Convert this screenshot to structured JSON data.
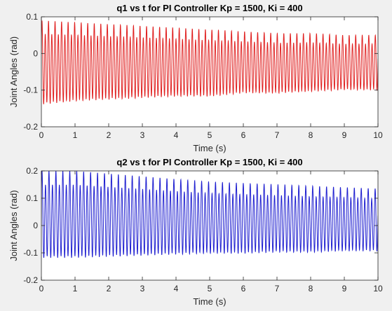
{
  "chart_data": [
    {
      "type": "line",
      "title": "q1 vs t for PI Controller Kp = 1500, Ki = 400",
      "xlabel": "Time (s)",
      "ylabel": "Joint Angles (rad)",
      "xlim": [
        0,
        10
      ],
      "ylim": [
        -0.2,
        0.1
      ],
      "xticks": [
        "0",
        "1",
        "2",
        "3",
        "4",
        "5",
        "6",
        "7",
        "8",
        "9",
        "10"
      ],
      "yticks": [
        "-0.2",
        "-0.1",
        "0",
        "0.1"
      ],
      "grid": false,
      "series": [
        {
          "color": "#e02020",
          "description_of_signal": "oscillation about -0.02 rad, ~10 cycles per second",
          "x": [
            0,
            1,
            2,
            3,
            4,
            5,
            6,
            7,
            8,
            9,
            10
          ],
          "upper_envelope": [
            0.09,
            0.085,
            0.08,
            0.075,
            0.07,
            0.065,
            0.06,
            0.055,
            0.055,
            0.05,
            0.05
          ],
          "lower_envelope": [
            -0.155,
            -0.145,
            -0.14,
            -0.135,
            -0.13,
            -0.13,
            -0.12,
            -0.12,
            -0.115,
            -0.11,
            -0.11
          ]
        }
      ]
    },
    {
      "type": "line",
      "title": "q2 vs t for PI Controller Kp = 1500, Ki = 400",
      "xlabel": "Time (s)",
      "ylabel": "Joint Angles (rad)",
      "xlim": [
        0,
        10
      ],
      "ylim": [
        -0.2,
        0.2
      ],
      "xticks": [
        "0",
        "1",
        "2",
        "3",
        "4",
        "5",
        "6",
        "7",
        "8",
        "9",
        "10"
      ],
      "yticks": [
        "-0.2",
        "-0.1",
        "0",
        "0.1",
        "0.2"
      ],
      "grid": false,
      "series": [
        {
          "color": "#1f1fd0",
          "x": [
            0,
            1,
            2,
            3,
            4,
            5,
            6,
            7,
            8,
            9,
            10
          ],
          "upper_envelope": [
            0.2,
            0.2,
            0.19,
            0.18,
            0.17,
            0.16,
            0.155,
            0.15,
            0.145,
            0.14,
            0.135
          ],
          "lower_envelope": [
            -0.14,
            -0.14,
            -0.135,
            -0.13,
            -0.125,
            -0.12,
            -0.12,
            -0.115,
            -0.115,
            -0.11,
            -0.11
          ]
        }
      ]
    }
  ]
}
